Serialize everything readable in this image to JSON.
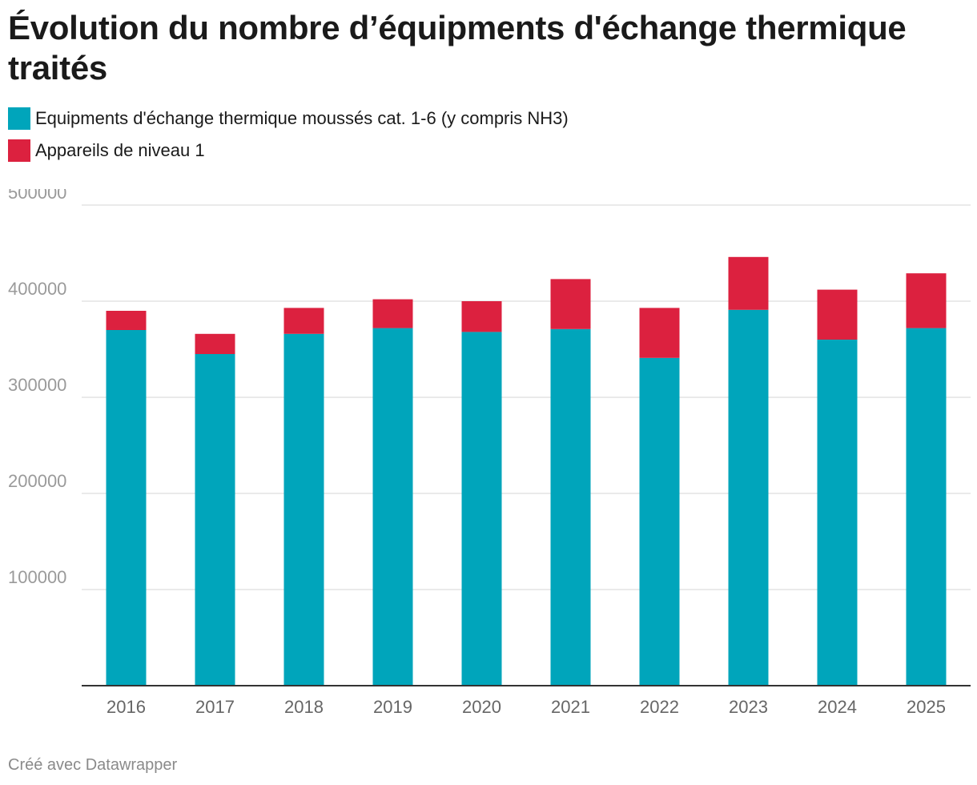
{
  "title": "Évolution du nombre d’équipments d'échange thermique traités",
  "credit": "Créé avec Datawrapper",
  "chart_data": {
    "type": "bar",
    "stacked": true,
    "title": "Évolution du nombre d’équipments d'échange thermique traités",
    "xlabel": "",
    "ylabel": "",
    "ylim": [
      0,
      500000
    ],
    "yticks": [
      "100000",
      "200000",
      "300000",
      "400000",
      "500000"
    ],
    "grid": true,
    "legend_position": "top-left",
    "categories": [
      "2016",
      "2017",
      "2018",
      "2019",
      "2020",
      "2021",
      "2022",
      "2023",
      "2024",
      "2025"
    ],
    "series": [
      {
        "name": "Equipments d'échange thermique moussés cat. 1-6 (y compris NH3)",
        "color": "#00a5bb",
        "values": [
          370000,
          345000,
          366000,
          372000,
          368000,
          371000,
          341000,
          391000,
          360000,
          372000
        ]
      },
      {
        "name": "Appareils de niveau 1",
        "color": "#dc213f",
        "values": [
          20000,
          21000,
          27000,
          30000,
          32000,
          52000,
          52000,
          55000,
          52000,
          57000
        ]
      }
    ]
  }
}
